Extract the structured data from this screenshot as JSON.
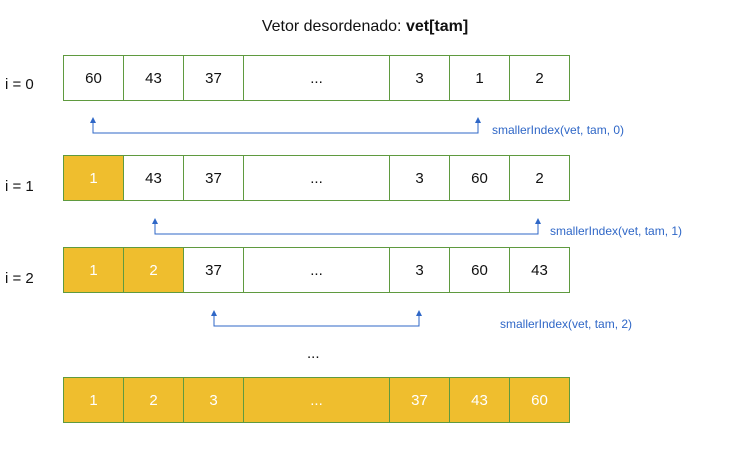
{
  "title": {
    "prefix": "Vetor desordenado: ",
    "bold": "vet[tam]"
  },
  "rows": [
    {
      "label": "i = 0",
      "cells": [
        "60",
        "43",
        "37",
        "...",
        "3",
        "1",
        "2"
      ],
      "sorted_count": 0,
      "call": "smallerIndex(vet, tam, 0)"
    },
    {
      "label": "i = 1",
      "cells": [
        "1",
        "43",
        "37",
        "...",
        "3",
        "60",
        "2"
      ],
      "sorted_count": 1,
      "call": "smallerIndex(vet, tam, 1)"
    },
    {
      "label": "i = 2",
      "cells": [
        "1",
        "2",
        "37",
        "...",
        "3",
        "60",
        "43"
      ],
      "sorted_count": 2,
      "call": "smallerIndex(vet, tam, 2)"
    }
  ],
  "middle_dots": "...",
  "final_row": {
    "cells": [
      "1",
      "2",
      "3",
      "...",
      "37",
      "43",
      "60"
    ]
  },
  "colors": {
    "sorted_fill": "#efbe2e",
    "border": "#5f9a3f",
    "connector": "#2f67c7"
  }
}
